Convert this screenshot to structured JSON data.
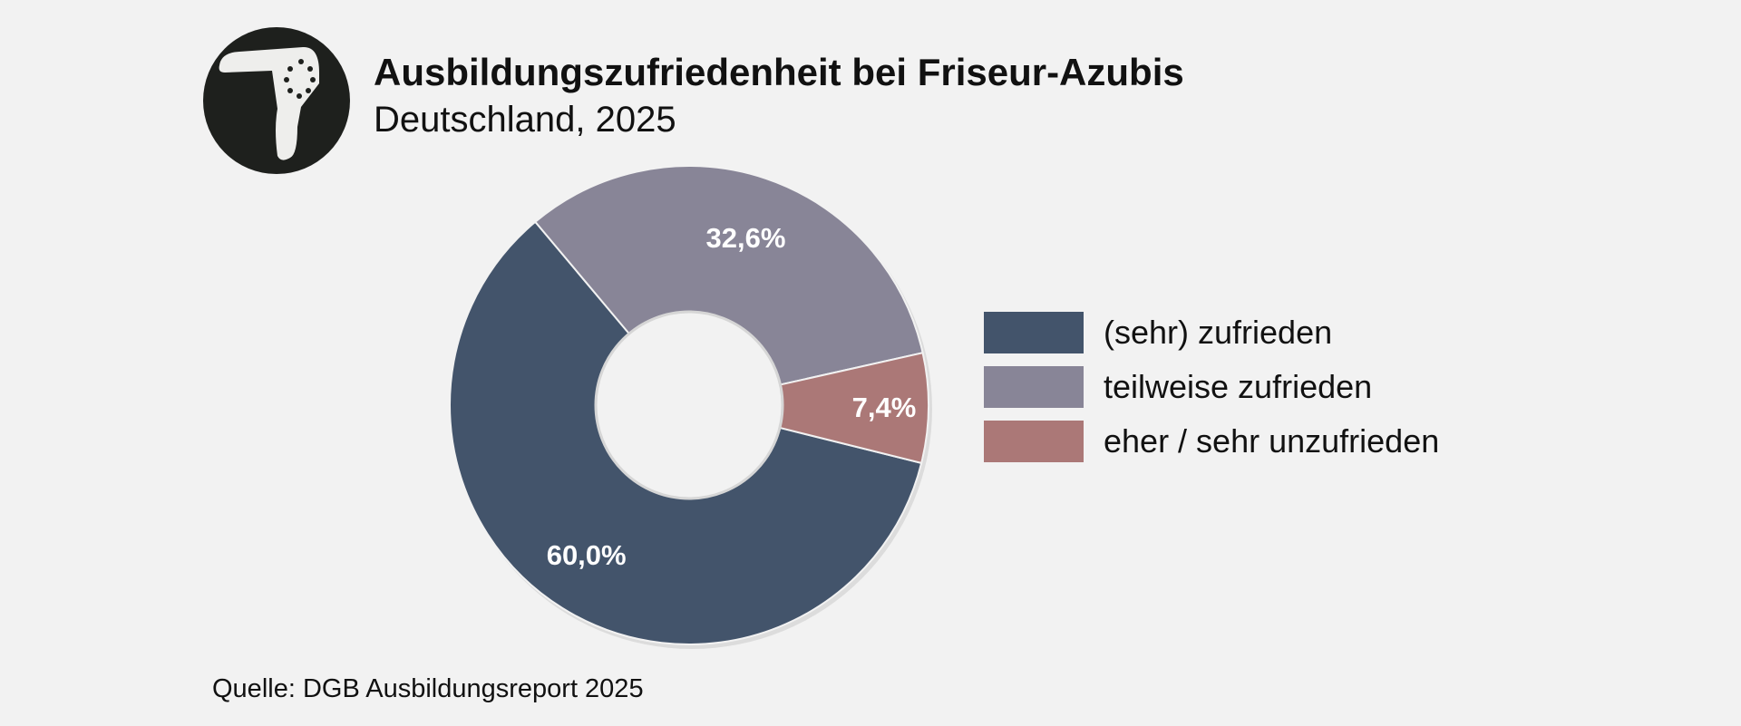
{
  "header": {
    "title": "Ausbildungszufriedenheit bei Friseur-Azubis",
    "subtitle": "Deutschland, 2025",
    "logo_icon": "hair-dryer-icon"
  },
  "colors": {
    "background": "#f2f2f2",
    "logo_circle": "#1e201d",
    "logo_symbol": "#eeeeec",
    "zufrieden": "#43546b",
    "teilweise": "#888597",
    "unzufrieden": "#ab7877"
  },
  "chart_data": {
    "type": "pie",
    "donut": true,
    "categories": [
      "(sehr) zufrieden",
      "teilweise zufrieden",
      "eher / sehr unzufrieden"
    ],
    "values": [
      60.0,
      32.6,
      7.4
    ],
    "value_labels": [
      "60,0%",
      "32,6%",
      "7,4%"
    ],
    "colors": [
      "#43546b",
      "#888597",
      "#ab7877"
    ],
    "legend": "right",
    "unit": "%"
  },
  "source": "Quelle: DGB Ausbildungsreport 2025"
}
